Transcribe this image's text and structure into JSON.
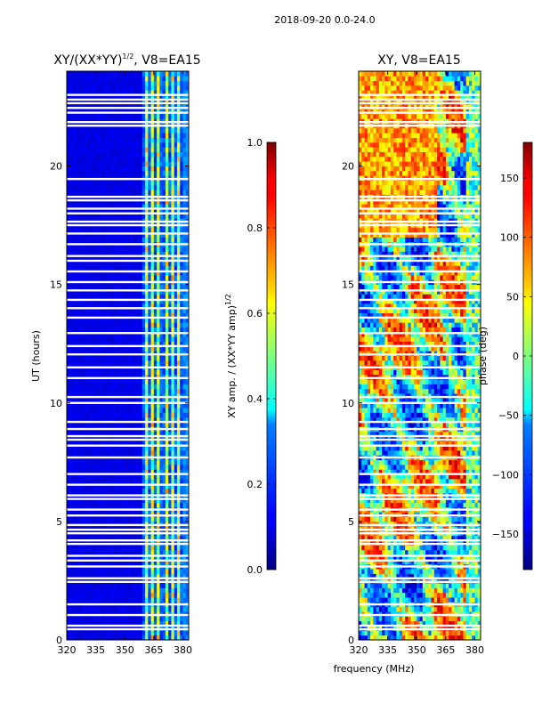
{
  "figure": {
    "suptitle": "2018-09-20 0.0-24.0",
    "xlabel": "frequency (MHz)"
  },
  "chart_data": [
    {
      "type": "heatmap",
      "title_main": "XY/(XX*YY)",
      "title_exp": "1/2",
      "title_rest": ", V8=EA15",
      "title": "XY/(XX*YY)^1/2, V8=EA15",
      "xlabel": "frequency (MHz)",
      "ylabel": "UT (hours)",
      "xlim": [
        320,
        383
      ],
      "ylim": [
        0,
        24
      ],
      "xticks": [
        "320",
        "335",
        "350",
        "365",
        "380"
      ],
      "xtick_values": [
        320,
        335,
        350,
        365,
        380
      ],
      "yticks": [
        "0",
        "5",
        "10",
        "15",
        "20"
      ],
      "ytick_values": [
        0,
        5,
        10,
        15,
        20
      ],
      "colormap": "jet",
      "colorbar": {
        "label_main": "XY amp. / (XX*YY amp)",
        "label_exp": "1/2",
        "range": [
          0.0,
          1.0
        ],
        "ticks": [
          "0.0",
          "0.2",
          "0.4",
          "0.6",
          "0.8",
          "1.0"
        ],
        "tick_values": [
          0.0,
          0.2,
          0.4,
          0.6,
          0.8,
          1.0
        ]
      }
    },
    {
      "type": "heatmap",
      "title": "XY, V8=EA15",
      "xlabel": "frequency (MHz)",
      "ylabel": "",
      "xlim": [
        320,
        383
      ],
      "ylim": [
        0,
        24
      ],
      "xticks": [
        "320",
        "335",
        "350",
        "365",
        "380"
      ],
      "xtick_values": [
        320,
        335,
        350,
        365,
        380
      ],
      "yticks": [
        "0",
        "5",
        "10",
        "15",
        "20"
      ],
      "ytick_values": [
        0,
        5,
        10,
        15,
        20
      ],
      "colormap": "jet",
      "colorbar": {
        "label": "phase (deg)",
        "range": [
          -180,
          180
        ],
        "ticks": [
          "−150",
          "−100",
          "−50",
          "0",
          "50",
          "100",
          "150"
        ],
        "tick_values": [
          -150,
          -100,
          -50,
          0,
          50,
          100,
          150
        ]
      }
    }
  ],
  "flagged_hours": [
    0.45,
    0.6,
    1.05,
    1.5,
    2.45,
    2.6,
    3.1,
    3.35,
    3.55,
    4.05,
    4.2,
    4.5,
    4.65,
    4.85,
    5.25,
    5.5,
    5.95,
    6.1,
    6.55,
    7.0,
    7.7,
    8.2,
    8.45,
    8.6,
    8.9,
    9.2,
    10.0,
    10.25,
    11.05,
    11.5,
    12.05,
    12.4,
    12.95,
    13.6,
    14.0,
    14.35,
    14.75,
    15.1,
    15.55,
    16.0,
    16.2,
    16.7,
    17.15,
    17.5,
    17.65,
    18.0,
    18.2,
    18.55,
    18.7,
    19.45,
    21.7,
    21.85,
    22.25,
    22.45,
    22.65,
    22.8,
    23.0
  ]
}
